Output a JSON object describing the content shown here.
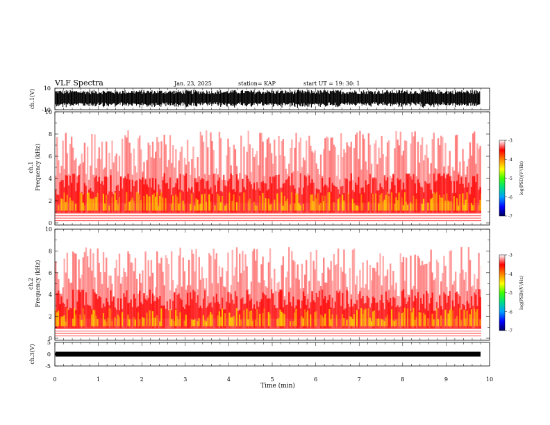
{
  "header": {
    "title": "VLF Spectra",
    "date": "Jan. 23, 2025",
    "station": "station= KAP",
    "start_ut": "start UT =   19: 30: 1"
  },
  "colors": {
    "axis": "#000000",
    "waveform": "#000000",
    "spectrogram_low": "#ffffff",
    "spectrogram_mid": "#ff2020",
    "spectrogram_high": "#ffff00"
  },
  "chart_data": [
    {
      "type": "line",
      "name": "waveform-ch1",
      "ylabel": "ch.1(V)",
      "ylim": [
        -10,
        10
      ],
      "yticks": [
        "10",
        "-10"
      ],
      "xlim": [
        0,
        10
      ],
      "note_series": "dense oscillating signal, roughly between -10 and 10 V"
    },
    {
      "type": "heatmap",
      "name": "spectrogram-ch1",
      "ylabel_top": "ch.1",
      "ylabel": "Frequency (kHz)",
      "ylim": [
        0,
        10
      ],
      "yticks": [
        "0",
        "2",
        "4",
        "6",
        "8",
        "10"
      ],
      "xlim": [
        0,
        10
      ],
      "colorbar": {
        "label": "log(PSD)(V²/Hz)",
        "range": [
          -7,
          -3
        ],
        "ticks": [
          "-3",
          "-4",
          "-5",
          "-6",
          "-7"
        ]
      }
    },
    {
      "type": "heatmap",
      "name": "spectrogram-ch2",
      "ylabel_top": "ch.2",
      "ylabel": "Frequency (kHz)",
      "ylim": [
        0,
        10
      ],
      "yticks": [
        "0",
        "2",
        "4",
        "6",
        "8",
        "10"
      ],
      "xlim": [
        0,
        10
      ],
      "colorbar": {
        "label": "log(PSD)(V²/Hz)",
        "range": [
          -7,
          -3
        ],
        "ticks": [
          "-3",
          "-4",
          "-5",
          "-6",
          "-7"
        ]
      }
    },
    {
      "type": "line",
      "name": "waveform-ch3",
      "ylabel": "ch.3(V)",
      "ylim": [
        -5,
        5
      ],
      "yticks": [
        "5",
        "0",
        "-5"
      ],
      "xlim": [
        0,
        10
      ],
      "xlabel": "Time (min)",
      "xticks": [
        "0",
        "1",
        "2",
        "3",
        "4",
        "5",
        "6",
        "7",
        "8",
        "9",
        "10"
      ],
      "note_series": "narrow band near 0 V"
    }
  ]
}
